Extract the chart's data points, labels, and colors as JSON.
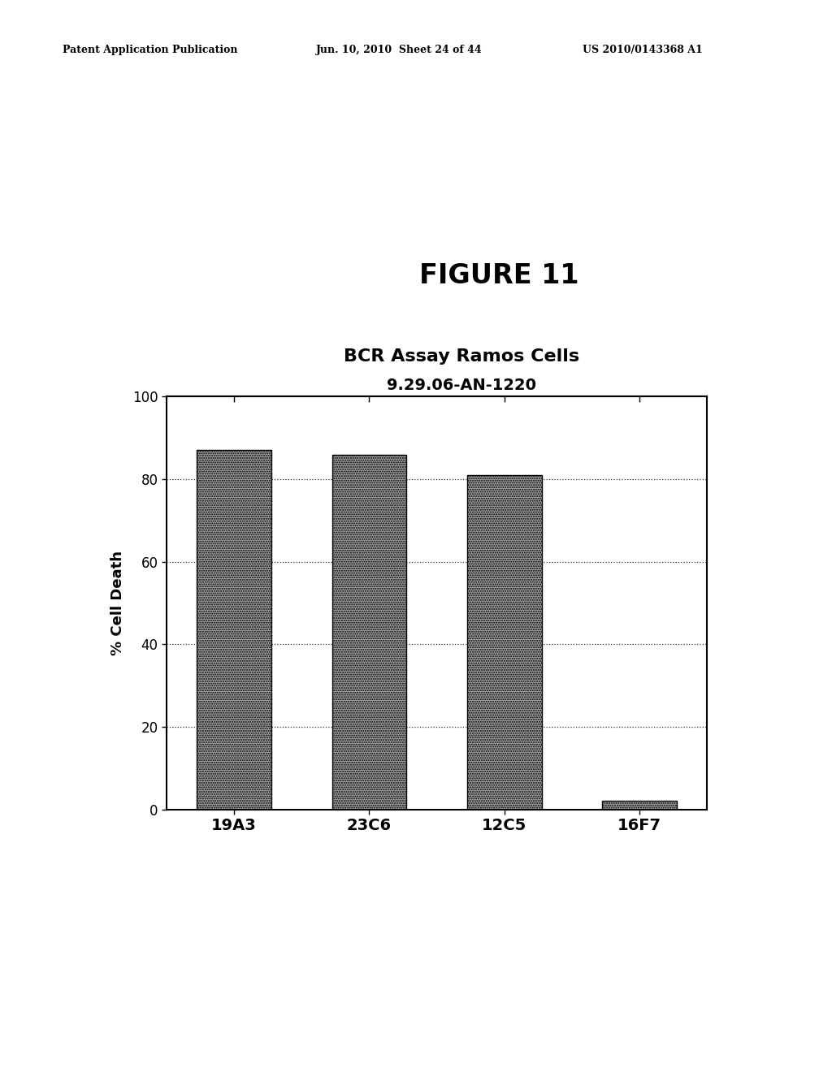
{
  "header_left": "Patent Application Publication",
  "header_mid": "Jun. 10, 2010  Sheet 24 of 44",
  "header_right": "US 2010/0143368 A1",
  "figure_label": "FIGURE 11",
  "chart_title_line1": "BCR Assay Ramos Cells",
  "chart_title_line2": "9.29.06-AN-1220",
  "categories": [
    "19A3",
    "23C6",
    "12C5",
    "16F7"
  ],
  "values": [
    87,
    86,
    81,
    2
  ],
  "ylabel": "% Cell Death",
  "ylim": [
    0,
    100
  ],
  "yticks": [
    0,
    20,
    40,
    60,
    80,
    100
  ],
  "bar_color": "#a0a0a0",
  "background_color": "#ffffff",
  "header_fontsize": 9,
  "figure_label_fontsize": 24,
  "title_fontsize": 16,
  "subtitle_fontsize": 14,
  "axis_label_fontsize": 13,
  "tick_fontsize": 12
}
